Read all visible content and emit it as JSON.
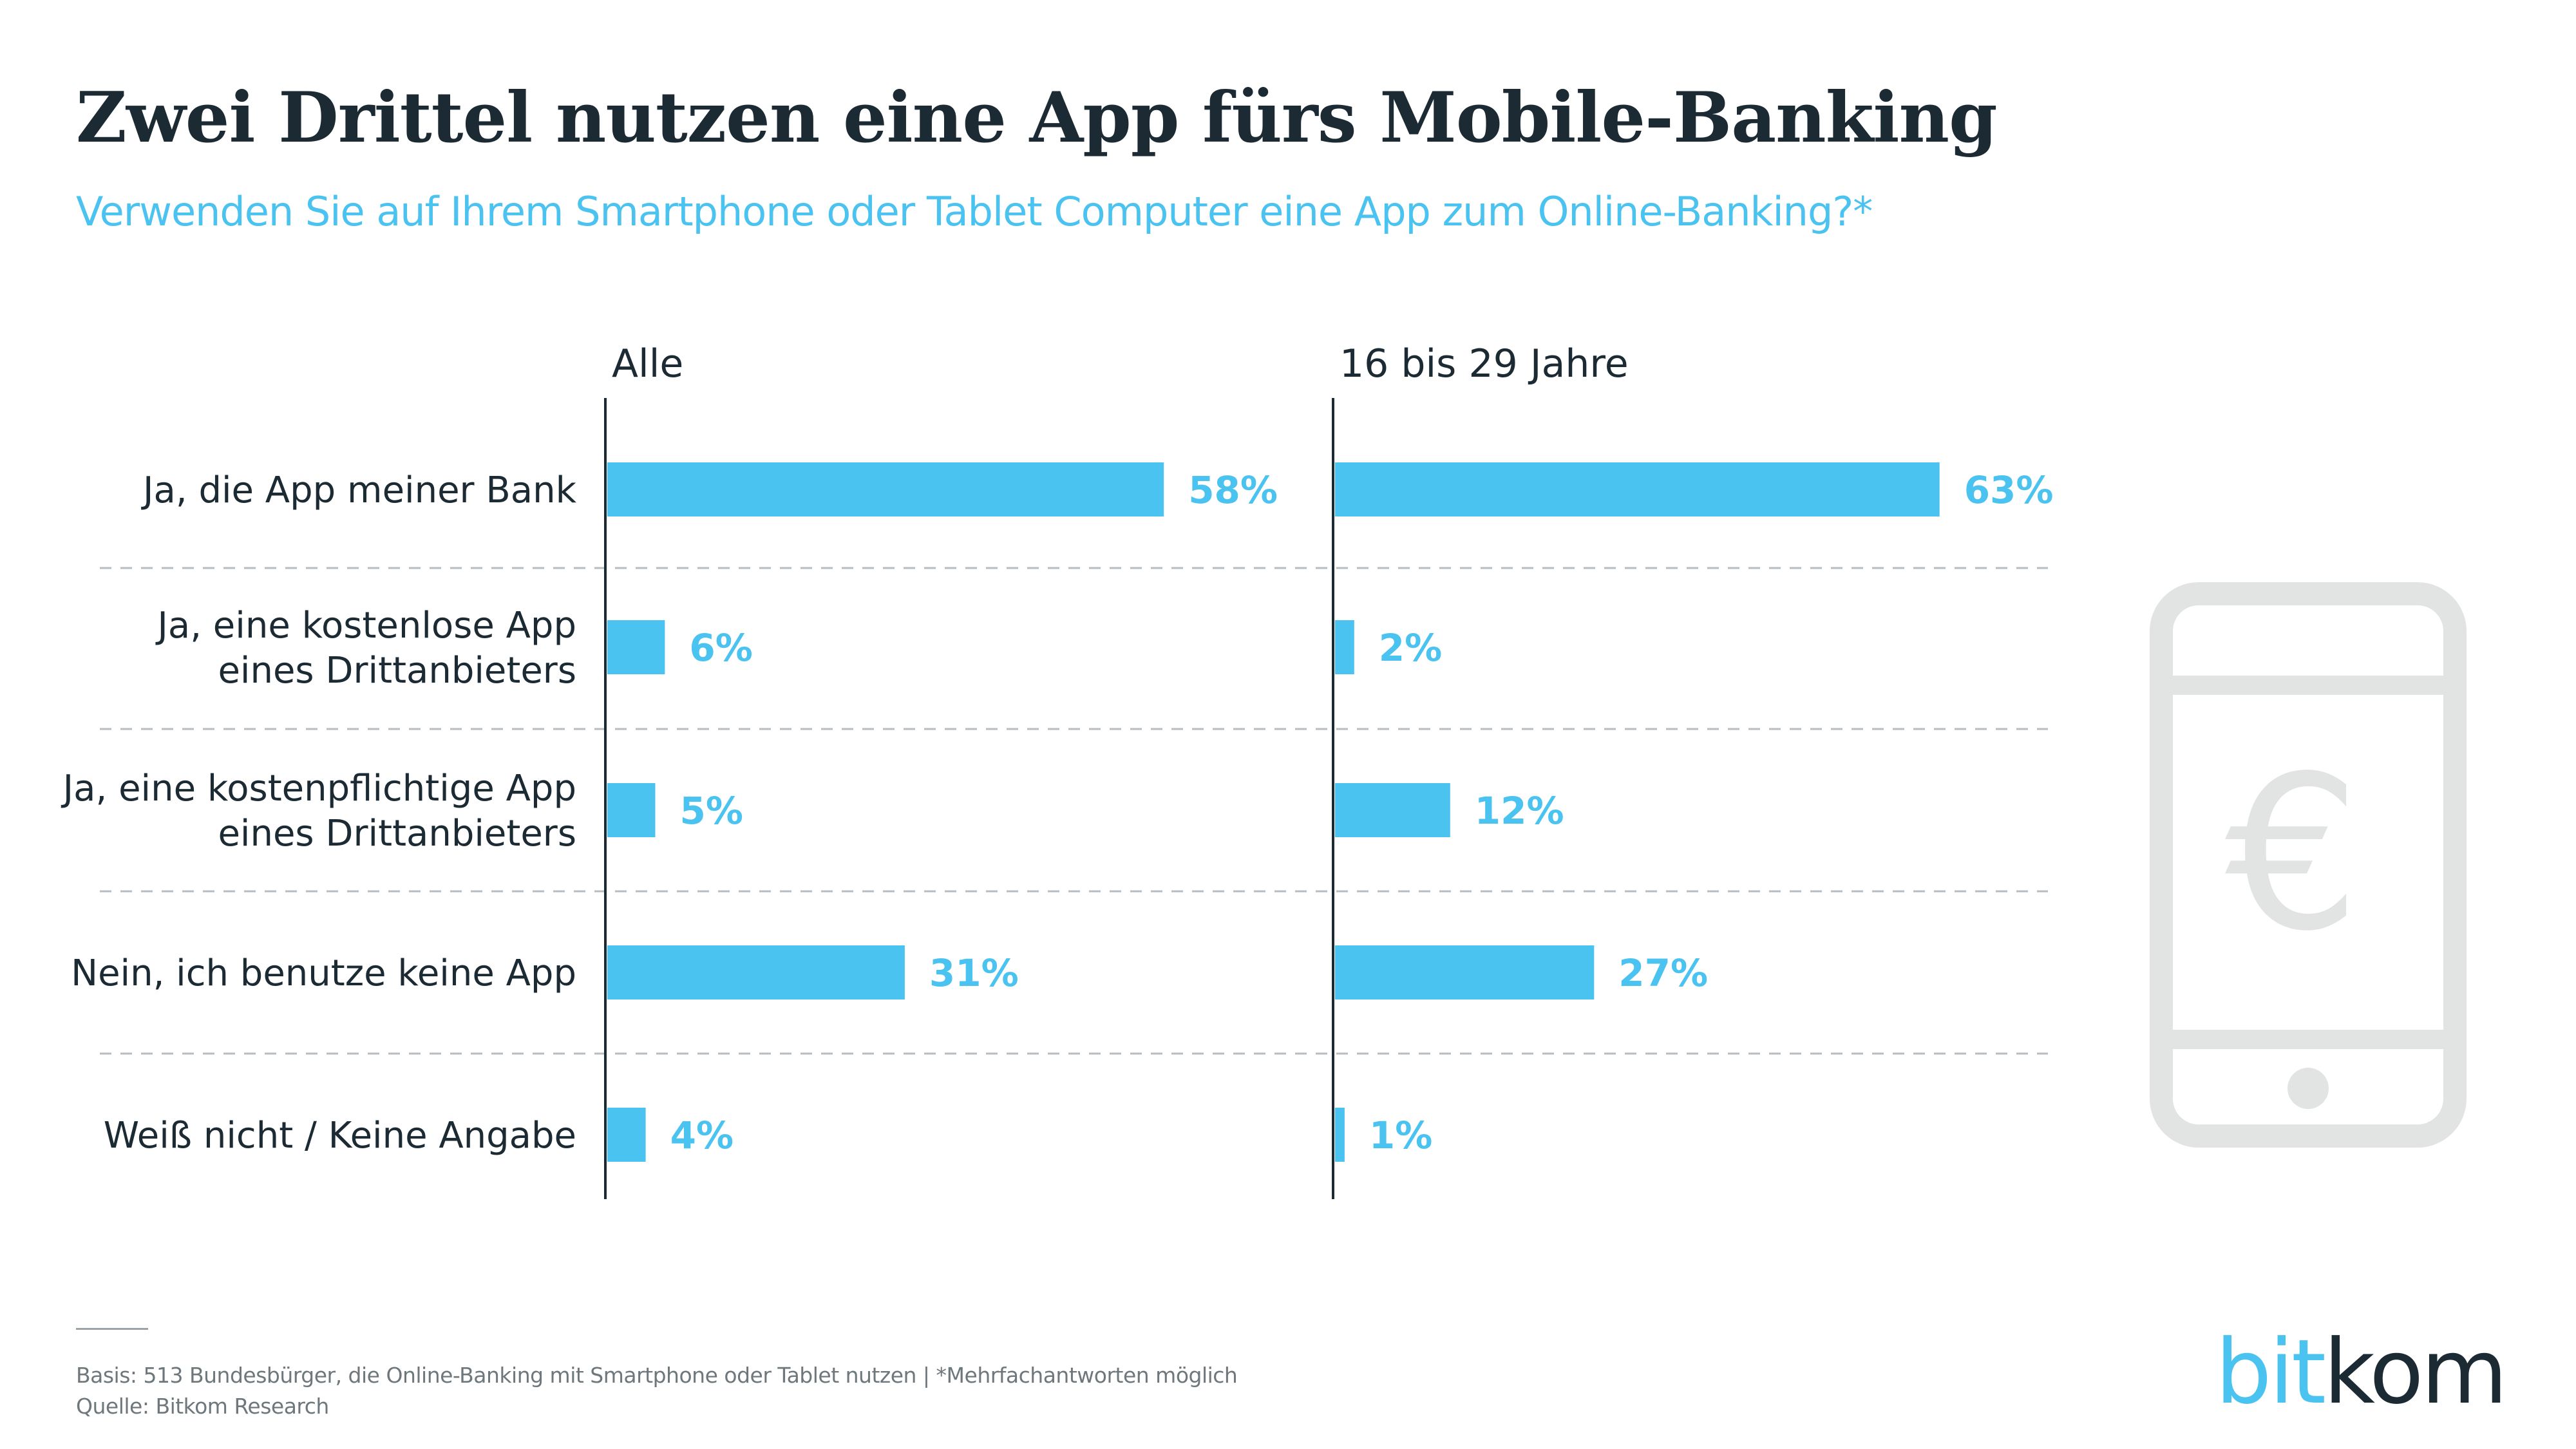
{
  "title": "Zwei Drittel nutzen eine App fürs Mobile-Banking",
  "subtitle": "Verwenden Sie auf Ihrem Smartphone oder Tablet Computer eine App zum Online-Banking?*",
  "chart_data": {
    "type": "bar",
    "orientation": "horizontal",
    "categories": [
      "Ja, die  App meiner Bank",
      "Ja, eine kostenlose App\neines Drittanbieters",
      "Ja, eine kostenpflichtige App\neines Drittanbieters",
      "Nein, ich benutze keine App",
      "Weiß nicht / Keine Angabe"
    ],
    "series": [
      {
        "name": "Alle",
        "values": [
          58,
          6,
          5,
          31,
          4
        ]
      },
      {
        "name": "16 bis 29 Jahre",
        "values": [
          63,
          2,
          12,
          27,
          1
        ]
      }
    ],
    "value_suffix": "%",
    "bar_color": "#4bc3f0",
    "label_color": "#4bc3f0",
    "grid": "dashed row separators"
  },
  "icon": "smartphone-euro-icon",
  "footer": {
    "basis": "Basis: 513 Bundesbürger, die Online-Banking mit Smartphone oder Tablet nutzen | *Mehrfachantworten möglich",
    "source": "Quelle: Bitkom Research"
  },
  "logo": {
    "part1": "bit",
    "part2": "kom"
  },
  "colors": {
    "accent": "#4bc3f0",
    "dark": "#1c2a33",
    "icon": "#e1e4e3"
  }
}
